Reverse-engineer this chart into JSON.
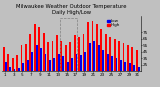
{
  "title": "Milwaukee Weather Outdoor Temperature\nDaily High/Low",
  "title_fontsize": 3.8,
  "bar_width": 0.42,
  "high_color": "#ff0000",
  "low_color": "#0000ee",
  "bg_color": "#c0c0c0",
  "plot_bg": "#c0c0c0",
  "top_bg": "#000000",
  "ylim": [
    15,
    100
  ],
  "days": [
    1,
    2,
    3,
    4,
    5,
    6,
    7,
    8,
    9,
    10,
    11,
    12,
    13,
    14,
    15,
    16,
    17,
    18,
    19,
    20,
    21,
    22,
    23,
    24,
    25,
    26,
    27,
    28,
    29,
    30,
    31
  ],
  "highs": [
    52,
    42,
    36,
    40,
    55,
    56,
    72,
    88,
    82,
    74,
    60,
    62,
    70,
    62,
    55,
    60,
    70,
    68,
    72,
    90,
    92,
    88,
    80,
    72,
    68,
    65,
    62,
    58,
    55,
    52,
    48
  ],
  "lows": [
    30,
    22,
    18,
    20,
    28,
    32,
    45,
    55,
    50,
    42,
    32,
    35,
    42,
    38,
    30,
    35,
    42,
    40,
    45,
    58,
    62,
    55,
    48,
    42,
    38,
    35,
    32,
    30,
    28,
    25,
    22
  ],
  "dashed_region_start": 14,
  "dashed_region_end": 17,
  "dashed_top": 97,
  "legend_high_label": "High",
  "legend_low_label": "Low",
  "legend_fontsize": 3.0,
  "tick_fontsize": 3.0,
  "yticks": [
    25,
    35,
    45,
    55,
    65,
    75
  ],
  "ytick_labels": [
    "25",
    "35",
    "45",
    "55",
    "65",
    "75"
  ],
  "xticks": [
    1,
    3,
    5,
    7,
    9,
    11,
    13,
    15,
    17,
    19,
    21,
    23,
    25,
    27,
    29,
    31
  ],
  "xlim": [
    0.3,
    31.7
  ]
}
